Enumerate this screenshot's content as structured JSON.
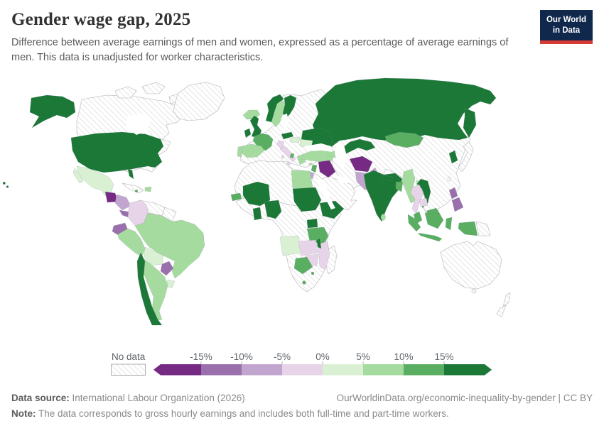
{
  "header": {
    "title": "Gender wage gap, 2025",
    "subtitle": "Difference between average earnings of men and women, expressed as a percentage of average earnings of men. This data is unadjusted for worker characteristics.",
    "logo": {
      "line1": "Our World",
      "line2": "in Data",
      "bg_color": "#10284c",
      "accent_color": "#d73c34"
    }
  },
  "legend": {
    "no_data_label": "No data",
    "tick_labels": [
      "-15%",
      "-10%",
      "-5%",
      "0%",
      "5%",
      "10%",
      "15%"
    ],
    "colors": [
      "#762a83",
      "#9970ab",
      "#c2a5cf",
      "#e7d4e8",
      "#d9f0d3",
      "#a6dba0",
      "#5aae61",
      "#1b7837"
    ],
    "hatch_line_color": "#cfcfcf",
    "tick_text_color": "#5f6368"
  },
  "footer": {
    "source_label": "Data source:",
    "source_value": "International Labour Organization (2026)",
    "url": "OurWorldinData.org/economic-inequality-by-gender | CC BY",
    "note_label": "Note:",
    "note_value": "The data corresponds to gross hourly earnings and includes both full-time and part-time workers."
  },
  "chart_data": {
    "type": "choropleth",
    "title": "Gender wage gap, 2025",
    "unit": "%",
    "legend_position": "bottom",
    "bucket_labels": [
      "< -15%",
      "-15% to -10%",
      "-10% to -5%",
      "-5% to 0%",
      "0% to 5%",
      "5% to 10%",
      "10% to 15%",
      "> 15%"
    ],
    "countries": [
      {
        "id": "canada",
        "name": "Canada",
        "bucket": "nodata"
      },
      {
        "id": "greenland",
        "name": "Greenland",
        "bucket": "nodata"
      },
      {
        "id": "cuba",
        "name": "Cuba",
        "bucket": "nodata"
      },
      {
        "id": "venezuela",
        "name": "Venezuela",
        "bucket": "nodata"
      },
      {
        "id": "guianas",
        "name": "Guyana & Suriname",
        "bucket": "nodata"
      },
      {
        "id": "japan",
        "name": "Japan",
        "bucket": "nodata"
      },
      {
        "id": "taiwan",
        "name": "Taiwan",
        "bucket": "nodata"
      },
      {
        "id": "papua-new-guinea",
        "name": "Papua New Guinea",
        "bucket": "nodata"
      },
      {
        "id": "australia",
        "name": "Australia",
        "bucket": "nodata"
      },
      {
        "id": "new-zealand",
        "name": "New Zealand",
        "bucket": "nodata"
      },
      {
        "id": "madagascar",
        "name": "Madagascar",
        "bucket": "nodata"
      },
      {
        "id": "russia",
        "name": "Russia",
        "bucket": 7
      },
      {
        "id": "ukraine",
        "name": "Ukraine",
        "bucket": 7
      },
      {
        "id": "usa",
        "name": "United States",
        "bucket": 7
      },
      {
        "id": "mexico",
        "name": "Mexico",
        "bucket": 4
      },
      {
        "id": "guatemala",
        "name": "Guatemala",
        "bucket": 0
      },
      {
        "id": "honduras-nicaragua",
        "name": "Honduras & Nicaragua",
        "bucket": 2
      },
      {
        "id": "costa-rica-panama",
        "name": "Costa Rica & Panama",
        "bucket": 1
      },
      {
        "id": "dominican-republic",
        "name": "Dominican Republic",
        "bucket": 5
      },
      {
        "id": "jamaica",
        "name": "Jamaica",
        "bucket": 6
      },
      {
        "id": "brazil",
        "name": "Brazil",
        "bucket": 5
      },
      {
        "id": "colombia",
        "name": "Colombia",
        "bucket": 3
      },
      {
        "id": "ecuador",
        "name": "Ecuador",
        "bucket": 1
      },
      {
        "id": "peru",
        "name": "Peru",
        "bucket": 5
      },
      {
        "id": "bolivia",
        "name": "Bolivia",
        "bucket": 4
      },
      {
        "id": "paraguay",
        "name": "Paraguay",
        "bucket": 1
      },
      {
        "id": "uruguay",
        "name": "Uruguay",
        "bucket": 4
      },
      {
        "id": "argentina",
        "name": "Argentina",
        "bucket": 5
      },
      {
        "id": "chile",
        "name": "Chile",
        "bucket": 7
      },
      {
        "id": "iceland",
        "name": "Iceland",
        "bucket": 5
      },
      {
        "id": "norway",
        "name": "Norway",
        "bucket": 7
      },
      {
        "id": "sweden",
        "name": "Sweden",
        "bucket": 5
      },
      {
        "id": "finland",
        "name": "Finland",
        "bucket": 7
      },
      {
        "id": "united-kingdom",
        "name": "United Kingdom",
        "bucket": 7
      },
      {
        "id": "ireland",
        "name": "Ireland",
        "bucket": 7
      },
      {
        "id": "france",
        "name": "France",
        "bucket": 6
      },
      {
        "id": "spain",
        "name": "Spain",
        "bucket": 5
      },
      {
        "id": "portugal",
        "name": "Portugal",
        "bucket": 5
      },
      {
        "id": "italy",
        "name": "Italy",
        "bucket": 3
      },
      {
        "id": "austria",
        "name": "Austria",
        "bucket": 7
      },
      {
        "id": "hungary",
        "name": "Hungary",
        "bucket": 4
      },
      {
        "id": "romania",
        "name": "Romania",
        "bucket": 4
      },
      {
        "id": "croatia",
        "name": "Croatia",
        "bucket": 3
      },
      {
        "id": "albania",
        "name": "Albania",
        "bucket": 6
      },
      {
        "id": "greece",
        "name": "Greece",
        "bucket": 5
      },
      {
        "id": "turkey",
        "name": "Turkey",
        "bucket": 5
      },
      {
        "id": "cyprus",
        "name": "Cyprus",
        "bucket": 5
      },
      {
        "id": "caucasus",
        "name": "Georgia & Azerbaijan",
        "bucket": 5
      },
      {
        "id": "jordan",
        "name": "Jordan & Israel",
        "bucket": 6
      },
      {
        "id": "palestine",
        "name": "Palestine",
        "bucket": 2
      },
      {
        "id": "iraq",
        "name": "Iraq",
        "bucket": 0
      },
      {
        "id": "egypt",
        "name": "Egypt",
        "bucket": 5
      },
      {
        "id": "mali",
        "name": "Mali",
        "bucket": 7
      },
      {
        "id": "senegal",
        "name": "Senegal",
        "bucket": 6
      },
      {
        "id": "ghana",
        "name": "Ghana",
        "bucket": 7
      },
      {
        "id": "nigeria",
        "name": "Nigeria",
        "bucket": 7
      },
      {
        "id": "sudan",
        "name": "Sudan",
        "bucket": 7
      },
      {
        "id": "ethiopia",
        "name": "Ethiopia",
        "bucket": 7
      },
      {
        "id": "uganda",
        "name": "Uganda",
        "bucket": 7
      },
      {
        "id": "tanzania",
        "name": "Tanzania",
        "bucket": 6
      },
      {
        "id": "angola",
        "name": "Angola",
        "bucket": 4
      },
      {
        "id": "zambia",
        "name": "Zambia",
        "bucket": 3
      },
      {
        "id": "mozambique",
        "name": "Mozambique",
        "bucket": 3
      },
      {
        "id": "malawi",
        "name": "Malawi",
        "bucket": 7
      },
      {
        "id": "zimbabwe",
        "name": "Zimbabwe",
        "bucket": 3
      },
      {
        "id": "botswana",
        "name": "Botswana",
        "bucket": 6
      },
      {
        "id": "lesotho",
        "name": "Lesotho",
        "bucket": 6
      },
      {
        "id": "eswatini",
        "name": "Eswatini",
        "bucket": 6
      },
      {
        "id": "uzbekistan",
        "name": "Uzbekistan",
        "bucket": 7
      },
      {
        "id": "afghanistan",
        "name": "Afghanistan",
        "bucket": 0
      },
      {
        "id": "pakistan",
        "name": "Pakistan",
        "bucket": 2
      },
      {
        "id": "india",
        "name": "India",
        "bucket": 7
      },
      {
        "id": "nepal",
        "name": "Nepal",
        "bucket": 7
      },
      {
        "id": "bangladesh",
        "name": "Bangladesh",
        "bucket": 6
      },
      {
        "id": "sri-lanka",
        "name": "Sri Lanka",
        "bucket": 5
      },
      {
        "id": "mongolia",
        "name": "Mongolia",
        "bucket": 6
      },
      {
        "id": "south-korea",
        "name": "South Korea",
        "bucket": 7
      },
      {
        "id": "myanmar",
        "name": "Myanmar",
        "bucket": 5
      },
      {
        "id": "laos",
        "name": "Laos",
        "bucket": 5
      },
      {
        "id": "vietnam",
        "name": "Vietnam",
        "bucket": 7
      },
      {
        "id": "thailand",
        "name": "Thailand",
        "bucket": 3
      },
      {
        "id": "cambodia",
        "name": "Cambodia",
        "bucket": 3
      },
      {
        "id": "malaysia",
        "name": "Malaysia",
        "bucket": 6
      },
      {
        "id": "indonesia",
        "name": "Indonesia",
        "bucket": 6
      },
      {
        "id": "philippines",
        "name": "Philippines",
        "bucket": 1
      }
    ]
  }
}
